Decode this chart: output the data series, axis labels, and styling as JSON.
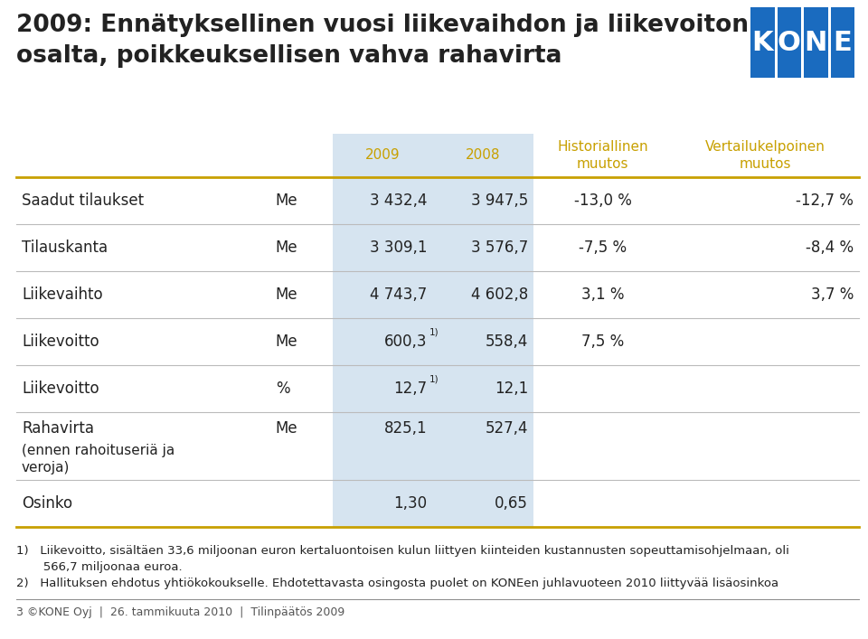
{
  "title_line1": "2009: Ennätyksellinen vuosi liikevaihdon ja liikevoiton",
  "title_line2": "osalta, poikkeuksellisen vahva rahavirta",
  "title_fontsize": 19,
  "title_color": "#222222",
  "bg_color": "#ffffff",
  "header_row": [
    "",
    "",
    "2009",
    "2008",
    "Historiallinen\nmuutos",
    "Vertailukelpoinen\nmuutos"
  ],
  "header_color_year": "#c8a000",
  "col_props": [
    0.265,
    0.065,
    0.105,
    0.105,
    0.145,
    0.195
  ],
  "table_rows": [
    [
      "Saadut tilaukset",
      "Me",
      "3 432,4",
      "3 947,5",
      "-13,0 %",
      "-12,7 %"
    ],
    [
      "Tilauskanta",
      "Me",
      "3 309,1",
      "3 576,7",
      "-7,5 %",
      "-8,4 %"
    ],
    [
      "Liikevaihto",
      "Me",
      "4 743,7",
      "4 602,8",
      "3,1 %",
      "3,7 %"
    ],
    [
      "Liikevoitto",
      "Me",
      "600,3",
      "558,4",
      "7,5 %",
      ""
    ],
    [
      "Liikevoitto",
      "%",
      "12,7",
      "12,1",
      "",
      ""
    ],
    [
      "Rahavirta",
      "Me",
      "825,1",
      "527,4",
      "",
      ""
    ],
    [
      "Osinko",
      "",
      "1,30",
      "0,65",
      "",
      ""
    ]
  ],
  "row_has_sup": [
    false,
    false,
    false,
    true,
    true,
    false,
    false
  ],
  "rahavirta_sub": "(ennen rahoituseriä ja\nveroja)",
  "footnote1a": "1)   Liikevoitto, sisältäen 33,6 miljoonan euron kertaluontoisen kulun liittyen kiinteiden kustannusten sopeuttamisohjelmaan, oli",
  "footnote1b": "       566,7 miljoonaa euroa.",
  "footnote2": "2)   Hallituksen ehdotus yhtiökokoukselle. Ehdotettavasta osingosta puolet on KONEen juhlavuoteen 2010 liittyvää lisäosinkoa",
  "footer": "3 ©KONE Oyj  |  26. tammikuuta 2010  |  Tilinpäätös 2009",
  "shade_color": "#d6e4f0",
  "separator_color": "#bbbbbb",
  "text_color": "#222222",
  "row_fontsize": 12,
  "header_fontsize": 11,
  "footnote_fontsize": 9.5,
  "footer_fontsize": 9,
  "logo_color": "#1a6bbf",
  "logo_text_color": "#ffffff"
}
